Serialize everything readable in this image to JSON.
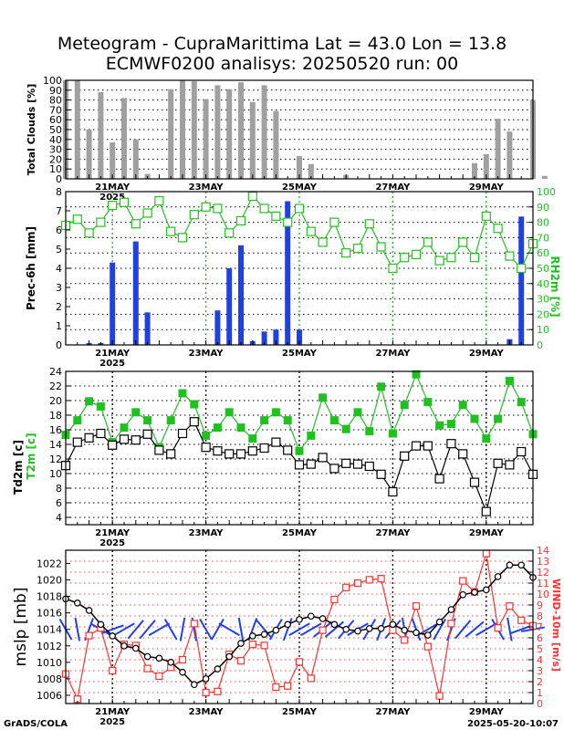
{
  "title": {
    "line1": "Meteogram - CupraMarittima Lat = 43.0 Lon = 13.8",
    "line2": "ECMWF0200 analisys: 20250520 run: 00"
  },
  "footer": {
    "left": "GrADS/COLA",
    "right": "2025-05-20-10:07"
  },
  "chart_data": [
    {
      "type": "bar",
      "ylabel": "Total Clouds [%]",
      "ylim": [
        0,
        100
      ],
      "yticks": [
        0,
        10,
        20,
        30,
        40,
        50,
        60,
        70,
        80,
        90,
        100
      ],
      "x_index_range": [
        0,
        40
      ],
      "x_major": {
        "indices": [
          4,
          12,
          20,
          28,
          36
        ],
        "labels": [
          "21MAY",
          "23MAY",
          "25MAY",
          "27MAY",
          "29MAY"
        ]
      },
      "x_sublabel": {
        "index": 4,
        "text": "2025"
      },
      "color": "#a0a0a0",
      "values": [
        100,
        100,
        50,
        88,
        37,
        82,
        40,
        5,
        0,
        91,
        100,
        99,
        81,
        95,
        91,
        98,
        78,
        95,
        69,
        0,
        23,
        15,
        0,
        0,
        4,
        0,
        0,
        0,
        0,
        0,
        0,
        0,
        0,
        0,
        0,
        16,
        25,
        61,
        48,
        0,
        80,
        3
      ]
    },
    {
      "type": "bar+line",
      "ylabel_left": "Prec-6h [mm]",
      "ylabel_right": "RH2m [%]",
      "ylim_left": [
        0,
        8
      ],
      "ylim_right": [
        0,
        100
      ],
      "yticks_left": [
        0,
        1,
        2,
        3,
        4,
        5,
        6,
        7,
        8
      ],
      "yticks_right": [
        0,
        10,
        20,
        30,
        40,
        50,
        60,
        70,
        80,
        90,
        100
      ],
      "x_major": {
        "indices": [
          4,
          12,
          20,
          28,
          36
        ],
        "labels": [
          "21MAY",
          "23MAY",
          "25MAY",
          "27MAY",
          "29MAY"
        ]
      },
      "x_sublabel": {
        "index": 4,
        "text": "2025"
      },
      "bar_color": "#2040e0",
      "line_color": "#20c020",
      "prec": [
        0,
        0,
        0.1,
        0.1,
        4.3,
        0,
        5.4,
        1.7,
        0,
        0,
        0,
        0,
        0,
        1.8,
        4.0,
        5.2,
        0.2,
        0.7,
        0.8,
        7.5,
        0.8,
        0,
        0,
        0,
        0,
        0,
        0,
        0,
        0,
        0,
        0,
        0,
        0,
        0,
        0,
        0,
        0,
        0,
        0.3,
        6.7,
        0,
        0
      ],
      "rh": [
        78,
        82,
        73,
        80,
        91,
        93,
        79,
        86,
        94,
        74,
        70,
        85,
        90,
        89,
        73,
        81,
        97,
        89,
        84,
        80,
        89,
        74,
        67,
        80,
        60,
        63,
        79,
        64,
        50,
        57,
        59,
        67,
        55,
        57,
        67,
        57,
        84,
        76,
        58,
        50,
        66,
        47,
        64,
        70
      ]
    },
    {
      "type": "line",
      "ylabel_left": "Td2m [c]",
      "ylabel_left2": "T2m [c]",
      "ylim": [
        3,
        24
      ],
      "yticks": [
        4,
        6,
        8,
        10,
        12,
        14,
        16,
        18,
        20,
        22,
        24
      ],
      "x_major": {
        "indices": [
          4,
          12,
          20,
          28,
          36
        ],
        "labels": [
          "21MAY",
          "23MAY",
          "25MAY",
          "27MAY",
          "29MAY"
        ]
      },
      "x_sublabel": {
        "index": 4,
        "text": "2025"
      },
      "series": [
        {
          "name": "T2m",
          "color": "#20c020",
          "values": [
            15.3,
            17.3,
            19.9,
            19.2,
            14.3,
            16.3,
            18.4,
            17.3,
            13.6,
            17.3,
            21.0,
            19.5,
            15.2,
            16.3,
            18.4,
            16.3,
            14.8,
            17.3,
            18.4,
            17.3,
            13.1,
            15.2,
            20.4,
            17.3,
            16.1,
            18.4,
            15.8,
            21.9,
            15.5,
            19.4,
            23.6,
            19.8,
            16.6,
            16.8,
            19.4,
            17.5,
            14.8,
            17.5,
            22.7,
            19.8,
            15.4
          ]
        },
        {
          "name": "Td2m",
          "color": "#000000",
          "values": [
            11.1,
            14.3,
            14.9,
            15.5,
            13.9,
            14.7,
            14.6,
            15.4,
            13.2,
            12.7,
            15.5,
            17.1,
            13.6,
            13.1,
            12.7,
            12.7,
            13.1,
            13.5,
            14.3,
            13.2,
            11.2,
            11.3,
            12.2,
            10.7,
            11.4,
            11.3,
            11.0,
            9.9,
            7.5,
            12.4,
            13.8,
            13.8,
            9.3,
            14.1,
            12.7,
            8.8,
            4.8,
            11.4,
            11.2,
            13.0,
            9.9
          ]
        }
      ]
    },
    {
      "type": "line+wind",
      "ylabel_left": "mslp [mb]",
      "ylabel_right": "WIND-10m [m/s]",
      "ylim_left": [
        1005,
        1023.6
      ],
      "ylim_right": [
        0,
        14
      ],
      "yticks_left": [
        1006,
        1008,
        1010,
        1012,
        1014,
        1016,
        1018,
        1020,
        1022
      ],
      "yticks_right": [
        0,
        1,
        2,
        3,
        4,
        5,
        6,
        7,
        8,
        9,
        10,
        11,
        12,
        13,
        14
      ],
      "x_major": {
        "indices": [
          4,
          12,
          20,
          28,
          36
        ],
        "labels": [
          "21MAY",
          "23MAY",
          "25MAY",
          "27MAY",
          "29MAY"
        ]
      },
      "x_sublabel": {
        "index": 4,
        "text": "2025"
      },
      "mslp_color": "#000000",
      "wind_color": "#ff3030",
      "barb_color": "#2040ee",
      "mslp": [
        1017.7,
        1017.2,
        1016.3,
        1014.6,
        1013.2,
        1012.0,
        1011.7,
        1010.7,
        1010.5,
        1010.0,
        1008.8,
        1007.3,
        1008.0,
        1009.2,
        1010.7,
        1012.3,
        1013.2,
        1013.4,
        1013.9,
        1014.6,
        1015.2,
        1015.6,
        1015.3,
        1014.6,
        1014.0,
        1013.8,
        1014.1,
        1014.1,
        1014.6,
        1013.9,
        1013.6,
        1013.3,
        1014.9,
        1016.4,
        1018.2,
        1018.5,
        1018.8,
        1020.4,
        1021.8,
        1021.8,
        1020.3,
        1020.1
      ],
      "wind": [
        2.7,
        0.4,
        6.2,
        6.9,
        3.0,
        5.4,
        5.3,
        3.2,
        2.5,
        3.3,
        4.0,
        7.3,
        1.0,
        1.1,
        4.5,
        3.9,
        5.4,
        5.3,
        1.5,
        1.6,
        3.8,
        2.3,
        6.7,
        9.5,
        10.6,
        11.0,
        11.3,
        11.4,
        6.7,
        5.8,
        8.9,
        5.2,
        0.7,
        7.3,
        11.2,
        10.2,
        13.7,
        6.9,
        8.9,
        7.6,
        7.1,
        2.8,
        6.8
      ],
      "barbs_deg": [
        330,
        350,
        20,
        300,
        70,
        60,
        40,
        40,
        60,
        330,
        10,
        350,
        330,
        30,
        300,
        350,
        20,
        320,
        30,
        20,
        60,
        60,
        50,
        50,
        40,
        60,
        30,
        20,
        40,
        350,
        340,
        60,
        30,
        20,
        40,
        50,
        60,
        330,
        350,
        70,
        80
      ]
    }
  ]
}
